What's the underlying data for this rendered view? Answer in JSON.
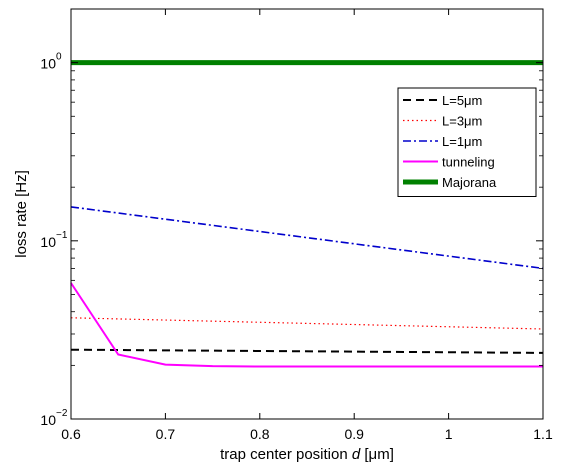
{
  "chart_data": {
    "type": "line",
    "title": "",
    "xlabel_prefix": "trap center position ",
    "xlabel_var": "d",
    "xlabel_suffix": " [μm]",
    "ylabel": "loss rate [Hz]",
    "x_scale": "linear",
    "y_scale": "log",
    "xlim": [
      0.6,
      1.1
    ],
    "ylim": [
      0.01,
      2
    ],
    "xticks": [
      0.6,
      0.7,
      0.8,
      0.9,
      1.0,
      1.1
    ],
    "xtick_labels": [
      "0.6",
      "0.7",
      "0.8",
      "0.9",
      "1",
      "1.1"
    ],
    "yticks": [
      {
        "value": 0.01,
        "base": "10",
        "exp": "−2"
      },
      {
        "value": 0.1,
        "base": "10",
        "exp": "−1"
      },
      {
        "value": 1,
        "base": "10",
        "exp": "0"
      }
    ],
    "grid": false,
    "legend_position": "top-right",
    "series": [
      {
        "name": "L=5μm",
        "color": "#000000",
        "style": "dashed",
        "x": [
          0.6,
          1.1
        ],
        "y": [
          0.0245,
          0.0235
        ]
      },
      {
        "name": "L=3μm",
        "color": "#ff0000",
        "style": "dotted",
        "x": [
          0.6,
          1.1
        ],
        "y": [
          0.037,
          0.032
        ]
      },
      {
        "name": "L=1μm",
        "color": "#0000cc",
        "style": "dashdot",
        "x": [
          0.6,
          1.1
        ],
        "y": [
          0.155,
          0.07
        ]
      },
      {
        "name": "tunneling",
        "color": "#ff00ff",
        "style": "solid",
        "x": [
          0.6,
          0.65,
          0.7,
          0.75,
          0.8,
          0.9,
          1.0,
          1.1
        ],
        "y": [
          0.058,
          0.023,
          0.0202,
          0.0198,
          0.0197,
          0.0197,
          0.0197,
          0.0197
        ]
      },
      {
        "name": "Majorana",
        "color": "#008000",
        "style": "thick",
        "x": [
          0.6,
          1.1
        ],
        "y": [
          1.0,
          1.0
        ]
      }
    ]
  }
}
